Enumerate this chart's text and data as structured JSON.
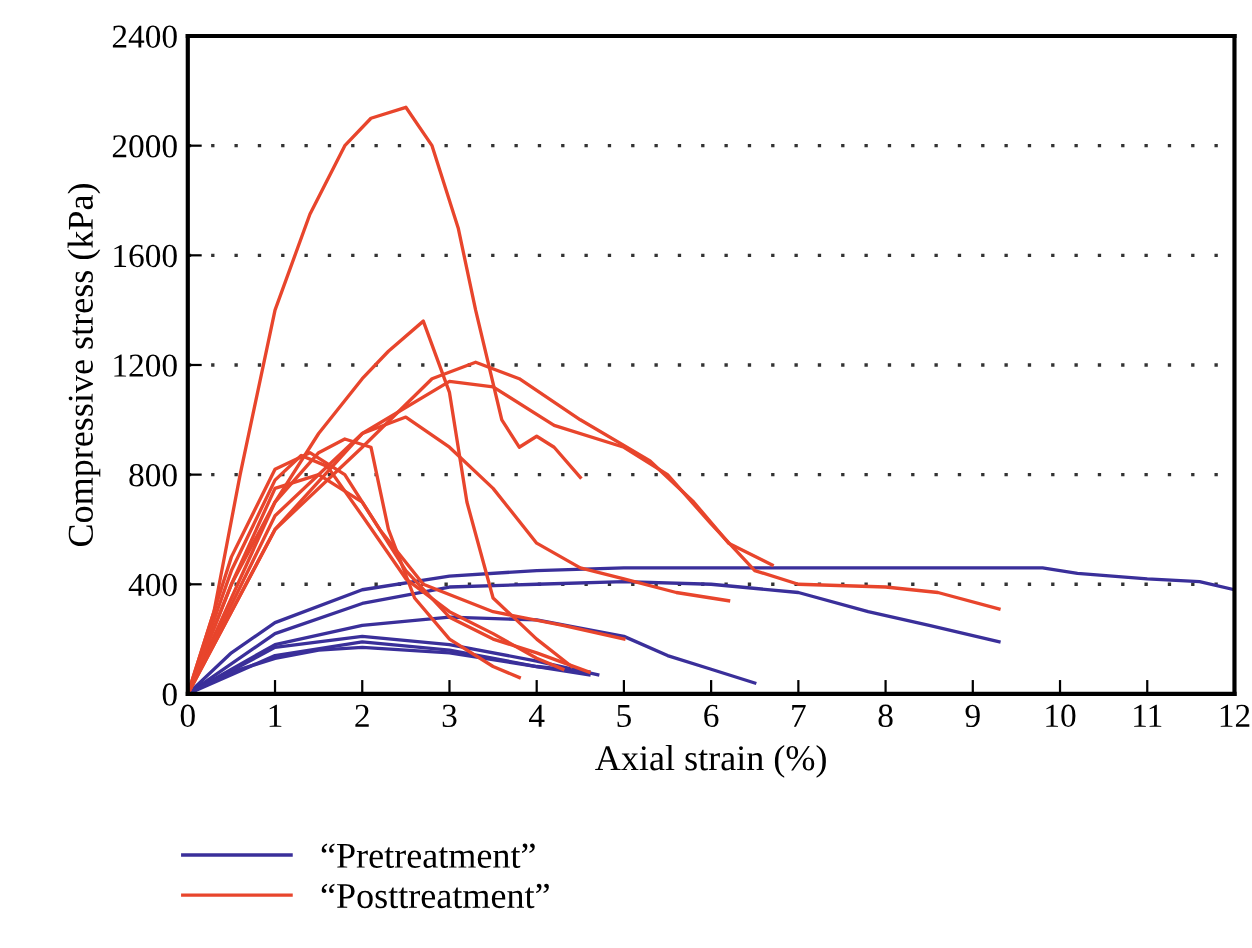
{
  "chart_data": {
    "type": "line",
    "xlabel": "Axial strain (%)",
    "ylabel": "Compressive stress (kPa)",
    "xlim": [
      0,
      12
    ],
    "xticks": [
      0,
      1,
      2,
      3,
      4,
      5,
      6,
      7,
      8,
      9,
      10,
      11,
      12
    ],
    "ylim": [
      0,
      2400
    ],
    "yticks": [
      0,
      400,
      800,
      1200,
      1600,
      2000,
      2400
    ],
    "grid": "y",
    "legend": "bottom left",
    "marker": "none",
    "line_style": "solid",
    "series": [
      {
        "name": "“Pretreatment”",
        "color": "#3a2f9a",
        "x": [
          0,
          0.5,
          1,
          2,
          3,
          4,
          5,
          6,
          8,
          9.8,
          10.2,
          11,
          11.6,
          12
        ],
        "values": [
          0,
          150,
          260,
          380,
          430,
          450,
          460,
          460,
          460,
          460,
          440,
          420,
          410,
          380
        ]
      },
      {
        "color": "#3a2f9a",
        "x": [
          0,
          1,
          2,
          3,
          4,
          5,
          6,
          7,
          7.8,
          8.5,
          9.3
        ],
        "values": [
          0,
          220,
          330,
          390,
          400,
          410,
          400,
          370,
          300,
          250,
          190
        ]
      },
      {
        "color": "#3a2f9a",
        "x": [
          0,
          1,
          2,
          3,
          4,
          5,
          5.5,
          6,
          6.5
        ],
        "values": [
          0,
          180,
          250,
          280,
          270,
          210,
          140,
          90,
          40
        ]
      },
      {
        "color": "#3a2f9a",
        "x": [
          0,
          1,
          2,
          3,
          4,
          4.7
        ],
        "values": [
          0,
          170,
          210,
          180,
          120,
          70
        ]
      },
      {
        "color": "#3a2f9a",
        "x": [
          0,
          1,
          2,
          3,
          4,
          4.6
        ],
        "values": [
          0,
          140,
          190,
          160,
          100,
          80
        ]
      },
      {
        "color": "#3a2f9a",
        "x": [
          0,
          0.5,
          1,
          1.5,
          2,
          3,
          4,
          4.6
        ],
        "values": [
          0,
          80,
          130,
          160,
          170,
          150,
          100,
          70
        ]
      },
      {
        "name": "“Posttreatment”",
        "color": "#e8452c",
        "x": [
          0,
          0.3,
          0.6,
          1,
          1.4,
          1.8,
          2.1,
          2.5,
          2.8,
          3.1,
          3.3,
          3.6,
          3.8,
          4,
          4.2,
          4.5
        ],
        "values": [
          0,
          300,
          800,
          1400,
          1750,
          2000,
          2100,
          2140,
          2000,
          1700,
          1400,
          1000,
          900,
          940,
          900,
          790
        ]
      },
      {
        "color": "#e8452c",
        "x": [
          0,
          0.5,
          1,
          1.5,
          2,
          2.3,
          2.7,
          3,
          3.2,
          3.5,
          4,
          4.4
        ],
        "values": [
          0,
          350,
          700,
          950,
          1150,
          1250,
          1360,
          1100,
          700,
          350,
          200,
          100
        ]
      },
      {
        "color": "#e8452c",
        "x": [
          0,
          0.5,
          1,
          2,
          2.8,
          3.3,
          3.8,
          4.5,
          5.3,
          5.8,
          6.2,
          6.7
        ],
        "values": [
          0,
          300,
          600,
          900,
          1150,
          1210,
          1150,
          1000,
          850,
          700,
          550,
          470
        ]
      },
      {
        "color": "#e8452c",
        "x": [
          0,
          1,
          2,
          3,
          3.5,
          4.2,
          5,
          5.5,
          6,
          6.5,
          7,
          8,
          8.6,
          9.3
        ],
        "values": [
          0,
          650,
          950,
          1140,
          1120,
          980,
          900,
          800,
          620,
          450,
          400,
          390,
          370,
          310
        ]
      },
      {
        "color": "#e8452c",
        "x": [
          0,
          1,
          2,
          2.5,
          3,
          3.5,
          4,
          4.5,
          5,
          5.6,
          6.2
        ],
        "values": [
          0,
          600,
          950,
          1010,
          900,
          750,
          550,
          460,
          420,
          370,
          340
        ]
      },
      {
        "color": "#e8452c",
        "x": [
          0,
          0.5,
          1,
          1.5,
          1.8,
          2.1,
          2.3,
          2.6,
          3,
          3.5,
          3.8
        ],
        "values": [
          0,
          400,
          700,
          880,
          930,
          900,
          600,
          350,
          200,
          100,
          60
        ]
      },
      {
        "color": "#e8452c",
        "x": [
          0,
          0.5,
          1,
          1.4,
          1.8,
          2.2,
          2.7,
          3.5,
          4.3,
          5
        ],
        "values": [
          0,
          500,
          820,
          880,
          800,
          600,
          400,
          300,
          250,
          200
        ]
      },
      {
        "color": "#e8452c",
        "x": [
          0,
          0.5,
          1,
          1.3,
          1.6,
          2,
          2.5,
          3,
          3.5,
          4,
          4.3
        ],
        "values": [
          0,
          450,
          780,
          870,
          830,
          650,
          420,
          300,
          220,
          130,
          90
        ]
      },
      {
        "color": "#e8452c",
        "x": [
          0,
          0.5,
          1,
          1.5,
          2,
          2.5,
          3,
          3.5,
          4,
          4.6
        ],
        "values": [
          0,
          400,
          750,
          800,
          700,
          450,
          280,
          200,
          150,
          80
        ]
      }
    ]
  }
}
